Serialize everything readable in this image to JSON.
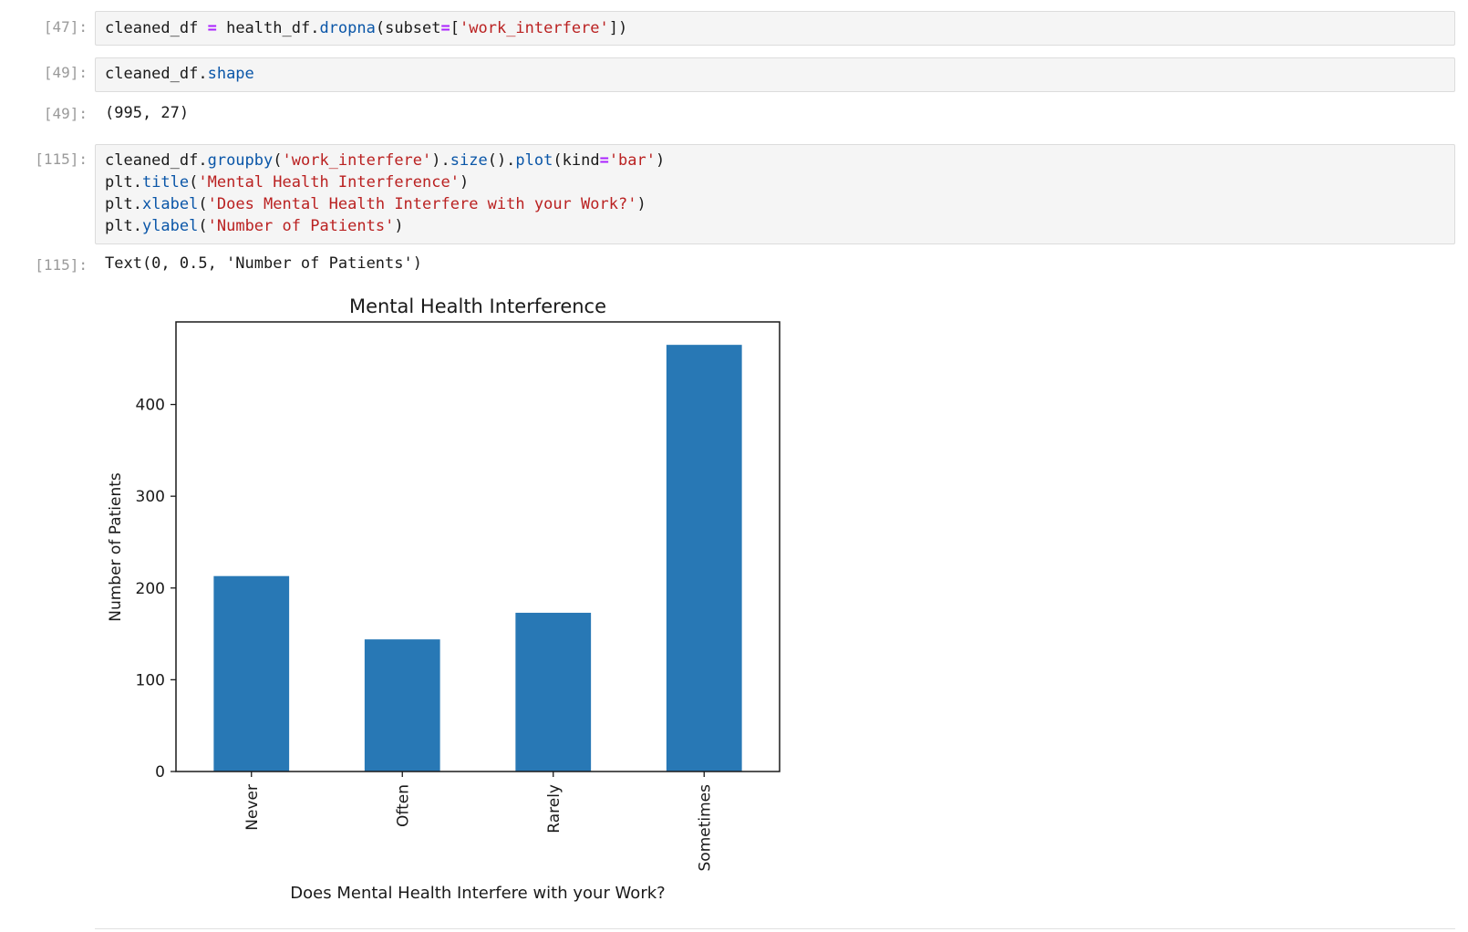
{
  "cells": {
    "c47": {
      "prompt": "[47]:",
      "tokens": [
        {
          "t": "cleaned_df ",
          "k": "var"
        },
        {
          "t": "=",
          "k": "op"
        },
        {
          "t": " health_df.",
          "k": "var"
        },
        {
          "t": "dropna",
          "k": "attr"
        },
        {
          "t": "(subset",
          "k": "punc"
        },
        {
          "t": "=",
          "k": "op"
        },
        {
          "t": "[",
          "k": "brack"
        },
        {
          "t": "'work_interfere'",
          "k": "str"
        },
        {
          "t": "])",
          "k": "brack"
        }
      ]
    },
    "c49": {
      "prompt": "[49]:",
      "tokens": [
        {
          "t": "cleaned_df.",
          "k": "var"
        },
        {
          "t": "shape",
          "k": "attr"
        }
      ],
      "out_prompt": "[49]:",
      "output": "(995, 27)"
    },
    "c115": {
      "prompt": "[115]:",
      "lines": [
        [
          {
            "t": "cleaned_df.",
            "k": "var"
          },
          {
            "t": "groupby",
            "k": "attr"
          },
          {
            "t": "(",
            "k": "punc"
          },
          {
            "t": "'work_interfere'",
            "k": "str"
          },
          {
            "t": ").",
            "k": "punc"
          },
          {
            "t": "size",
            "k": "attr"
          },
          {
            "t": "().",
            "k": "punc"
          },
          {
            "t": "plot",
            "k": "attr"
          },
          {
            "t": "(kind",
            "k": "punc"
          },
          {
            "t": "=",
            "k": "op"
          },
          {
            "t": "'bar'",
            "k": "str"
          },
          {
            "t": ")",
            "k": "punc"
          }
        ],
        [
          {
            "t": "plt.",
            "k": "var"
          },
          {
            "t": "title",
            "k": "attr"
          },
          {
            "t": "(",
            "k": "punc"
          },
          {
            "t": "'Mental Health Interference'",
            "k": "str"
          },
          {
            "t": ")",
            "k": "punc"
          }
        ],
        [
          {
            "t": "plt.",
            "k": "var"
          },
          {
            "t": "xlabel",
            "k": "attr"
          },
          {
            "t": "(",
            "k": "punc"
          },
          {
            "t": "'Does Mental Health Interfere with your Work?'",
            "k": "str"
          },
          {
            "t": ")",
            "k": "punc"
          }
        ],
        [
          {
            "t": "plt.",
            "k": "var"
          },
          {
            "t": "ylabel",
            "k": "attr"
          },
          {
            "t": "(",
            "k": "punc"
          },
          {
            "t": "'Number of Patients'",
            "k": "str"
          },
          {
            "t": ")",
            "k": "punc"
          }
        ]
      ],
      "out_prompt": "[115]:",
      "output": "Text(0, 0.5, 'Number of Patients')"
    }
  },
  "colors": {
    "bar": "#2878b5",
    "prompt": "#9a9a9a",
    "string": "#ba2121",
    "attribute": "#0a56a8",
    "operator": "#aa22ff"
  },
  "chart_data": {
    "type": "bar",
    "title": "Mental Health Interference",
    "xlabel": "Does Mental Health Interfere with your Work?",
    "ylabel": "Number of Patients",
    "categories": [
      "Never",
      "Often",
      "Rarely",
      "Sometimes"
    ],
    "values": [
      213,
      144,
      173,
      465
    ],
    "ylim": [
      0,
      490
    ],
    "yticks": [
      0,
      100,
      200,
      300,
      400
    ],
    "grid": false,
    "legend": "none"
  }
}
